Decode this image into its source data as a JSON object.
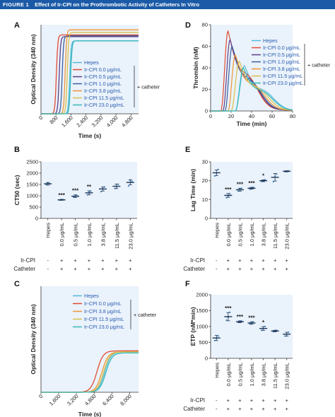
{
  "figure": {
    "label": "FIGURE 1",
    "title": "Effect of Ir-CPI on the Prothrombotic Activity of Catheters In Vitro"
  },
  "colors": {
    "panel_bg": "#eaf2fb",
    "hepes": "#56b9d8",
    "c0_0": "#e04a34",
    "c0_5": "#5b3f86",
    "c1_0": "#3d5e9e",
    "c3_8": "#ee9535",
    "c11_5": "#d7c14a",
    "c23_0": "#37b9ba",
    "marker": "#3b8fcf",
    "bar": "#1f3556"
  },
  "chart_data": [
    {
      "panel": "A",
      "type": "line",
      "xlabel": "Time (s)",
      "ylabel": "Optical Density (340 nm)",
      "xlim": [
        0,
        5200
      ],
      "xticks": [
        "0",
        "800",
        "1,600",
        "2,400",
        "3,200",
        "4,000",
        "4,800"
      ],
      "legend": [
        "Hepes",
        "Ir-CPI 0.0 μg/mL",
        "Ir-CPI 0.5 μg/mL",
        "Ir-CPI 1.0 μg/mL",
        "Ir-CPI 3.8 μg/mL",
        "Ir-CPI 11.5 μg/mL",
        "Ir-CPI 23.0 μg/mL"
      ],
      "bracket_label": "+ catheter",
      "series": [
        {
          "color": "hepes",
          "midpoint": 1530,
          "plateau": 0.86
        },
        {
          "color": "c0_0",
          "midpoint": 820,
          "plateau": 0.93
        },
        {
          "color": "c0_5",
          "midpoint": 970,
          "plateau": 0.91
        },
        {
          "color": "c1_0",
          "midpoint": 1130,
          "plateau": 0.92
        },
        {
          "color": "c3_8",
          "midpoint": 1290,
          "plateau": 0.99
        },
        {
          "color": "c11_5",
          "midpoint": 1400,
          "plateau": 0.96
        },
        {
          "color": "c23_0",
          "midpoint": 1580,
          "plateau": 0.86
        }
      ]
    },
    {
      "panel": "B",
      "type": "scatter",
      "ylabel": "CT50 (sec)",
      "ylim": [
        0,
        2500
      ],
      "yticks": [
        "0",
        "500",
        "1000",
        "1500",
        "2000",
        "2500"
      ],
      "categories": [
        "Hepes",
        "0.0 μg/mL",
        "0.5 μg/mL",
        "1.0 μg/mL",
        "3.8 μg/mL",
        "11.5 μg/mL",
        "23.0 μg/mL"
      ],
      "values": [
        1530,
        820,
        980,
        1130,
        1300,
        1420,
        1590
      ],
      "errors": [
        60,
        20,
        60,
        90,
        90,
        100,
        110
      ],
      "points": [
        [
          1500,
          1560,
          1530
        ],
        [
          810,
          830,
          825
        ],
        [
          940,
          990,
          1010
        ],
        [
          1040,
          1150,
          1200
        ],
        [
          1180,
          1320,
          1390
        ],
        [
          1320,
          1420,
          1510
        ],
        [
          1430,
          1700,
          1640
        ]
      ],
      "significance": [
        "",
        "***",
        "***",
        "**",
        "",
        "",
        ""
      ],
      "row_labels": [
        "Ir-CPI",
        "Catheter"
      ],
      "row1": [
        "-",
        "+",
        "+",
        "+",
        "+",
        "+",
        "+"
      ],
      "row2": [
        "-",
        "+",
        "+",
        "+",
        "+",
        "+",
        "+"
      ]
    },
    {
      "panel": "C",
      "type": "line",
      "xlabel": "Time (s)",
      "ylabel": "Optical Density (340 nm)",
      "xlim": [
        0,
        8800
      ],
      "xticks": [
        "0",
        "1,600",
        "3,200",
        "4,800",
        "6,400",
        "8,000"
      ],
      "legend": [
        "Hepes",
        "Ir-CPI 0.0 μg/mL",
        "Ir-CPI 3.8 μg/mL",
        "Ir-CPI 11.5 μg/mL",
        "Ir-CPI 23.0 μg/mL"
      ],
      "bracket_label": "+ catheter",
      "series": [
        {
          "color": "hepes",
          "midpoint": 5750,
          "plateau": 0.4
        },
        {
          "color": "c0_0",
          "midpoint": 5050,
          "plateau": 0.41
        },
        {
          "color": "c3_8",
          "midpoint": 5500,
          "plateau": 0.4
        },
        {
          "color": "c11_5",
          "midpoint": 5650,
          "plateau": 0.4
        },
        {
          "color": "c23_0",
          "midpoint": 5850,
          "plateau": 0.39
        }
      ]
    },
    {
      "panel": "D",
      "type": "line",
      "xlabel": "Time (min)",
      "ylabel": "Thrombin (nM)",
      "xlim": [
        0,
        80
      ],
      "ylim": [
        0,
        80
      ],
      "xticks": [
        "0",
        "20",
        "40",
        "60",
        "80"
      ],
      "yticks": [
        "0",
        "20",
        "40",
        "60",
        "80"
      ],
      "legend": [
        "Hepes",
        "Ir-CPI 0.0 μg/mL",
        "Ir-CPI 0.5 μg/mL",
        "Ir-CPI 1.0 μg/mL",
        "Ir-CPI 3.8 μg/mL",
        "Ir-CPI 11.5 μg/mL",
        "Ir-CPI 23.0 μg/mL"
      ],
      "bracket_label": "+ catheter",
      "series": [
        {
          "color": "hepes",
          "peak_time": 33,
          "peak": 42,
          "onset": 24
        },
        {
          "color": "c0_0",
          "peak_time": 17,
          "peak": 74,
          "onset": 10
        },
        {
          "color": "c0_5",
          "peak_time": 19,
          "peak": 66,
          "onset": 12
        },
        {
          "color": "c1_0",
          "peak_time": 21,
          "peak": 60,
          "onset": 14
        },
        {
          "color": "c3_8",
          "peak_time": 24,
          "peak": 52,
          "onset": 17
        },
        {
          "color": "c11_5",
          "peak_time": 28,
          "peak": 46,
          "onset": 20
        },
        {
          "color": "c23_0",
          "peak_time": 32,
          "peak": 40,
          "onset": 24
        }
      ]
    },
    {
      "panel": "E",
      "type": "scatter",
      "ylabel": "Lag Time (min)",
      "ylim": [
        0,
        30
      ],
      "yticks": [
        "0",
        "10",
        "20",
        "30"
      ],
      "categories": [
        "Hepes",
        "0.0 μg/mL",
        "0.5 μg/mL",
        "1.0 μg/mL",
        "3.8 μg/mL",
        "11.5 μg/mL",
        "23.0 μg/mL"
      ],
      "values": [
        24.2,
        12.2,
        15.2,
        16.0,
        20.0,
        21.8,
        25.0
      ],
      "errors": [
        1.5,
        1.0,
        0.8,
        0.5,
        0.5,
        2.0,
        0.3
      ],
      "points": [
        [
          22.5,
          24,
          26
        ],
        [
          11,
          12,
          13
        ],
        [
          14.5,
          15.5,
          16
        ],
        [
          15.5,
          16,
          16.5
        ],
        [
          19.6,
          20,
          20.5
        ],
        [
          19.5,
          22,
          23.5
        ],
        [
          24.8,
          25,
          25.2
        ]
      ],
      "significance": [
        "",
        "***",
        "***",
        "***",
        "*",
        "",
        ""
      ],
      "row_labels": [
        "Ir-CPI",
        "Catheter"
      ],
      "row1": [
        "-",
        "+",
        "+",
        "+",
        "+",
        "+",
        "+"
      ],
      "row2": [
        "-",
        "+",
        "+",
        "+",
        "+",
        "+",
        "+"
      ]
    },
    {
      "panel": "F",
      "type": "scatter",
      "ylabel": "ETP (nM*min)",
      "ylim": [
        0,
        2000
      ],
      "yticks": [
        "0",
        "500",
        "1000",
        "1500",
        "2000"
      ],
      "categories": [
        "Hepes",
        "0.0 μg/mL",
        "0.5 μg/mL",
        "1.0 μg/mL",
        "3.8 μg/mL",
        "11.5 μg/mL",
        "23.0 μg/mL"
      ],
      "values": [
        640,
        1310,
        1150,
        1110,
        940,
        860,
        760
      ],
      "errors": [
        80,
        130,
        30,
        40,
        60,
        25,
        60
      ],
      "points": [
        [
          560,
          640,
          700
        ],
        [
          1200,
          1290,
          1450
        ],
        [
          1130,
          1160,
          1170
        ],
        [
          1080,
          1110,
          1150
        ],
        [
          880,
          940,
          1000
        ],
        [
          840,
          860,
          880
        ],
        [
          700,
          760,
          820
        ]
      ],
      "significance": [
        "",
        "***",
        "***",
        "***",
        "*",
        "",
        ""
      ],
      "row_labels": [
        "Ir-CPI",
        "Catheter"
      ],
      "row1": [
        "-",
        "+",
        "+",
        "+",
        "+",
        "+",
        "+"
      ],
      "row2": [
        "-",
        "+",
        "+",
        "+",
        "+",
        "+",
        "+"
      ]
    }
  ]
}
